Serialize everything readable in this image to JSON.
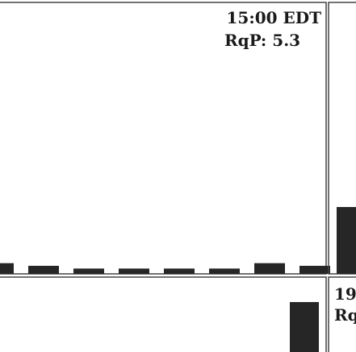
{
  "colors": {
    "bar": "#262626",
    "frame": "#444444",
    "background": "#ffffff"
  },
  "chart_data": [
    {
      "type": "bar",
      "panel": "top-left",
      "time_label": "15:00 EDT",
      "rqp_label": "RqP: 5.3",
      "values": [
        4,
        3,
        2,
        2,
        2,
        2,
        4,
        3
      ],
      "ylim": [
        0,
        100
      ],
      "xlabel": "",
      "ylabel": ""
    },
    {
      "type": "bar",
      "panel": "top-right",
      "time_label": "",
      "rqp_label": "",
      "values": [
        25
      ],
      "ylim": [
        0,
        100
      ],
      "xlabel": "",
      "ylabel": ""
    },
    {
      "type": "bar",
      "panel": "bottom-left",
      "time_label": "",
      "rqp_label": "",
      "values": [
        100
      ],
      "ylim": [
        0,
        100
      ],
      "xlabel": "",
      "ylabel": ""
    },
    {
      "type": "bar",
      "panel": "bottom-right",
      "time_label": "19",
      "rqp_label": "Rq",
      "values": [],
      "ylim": [
        0,
        100
      ],
      "xlabel": "",
      "ylabel": ""
    }
  ]
}
